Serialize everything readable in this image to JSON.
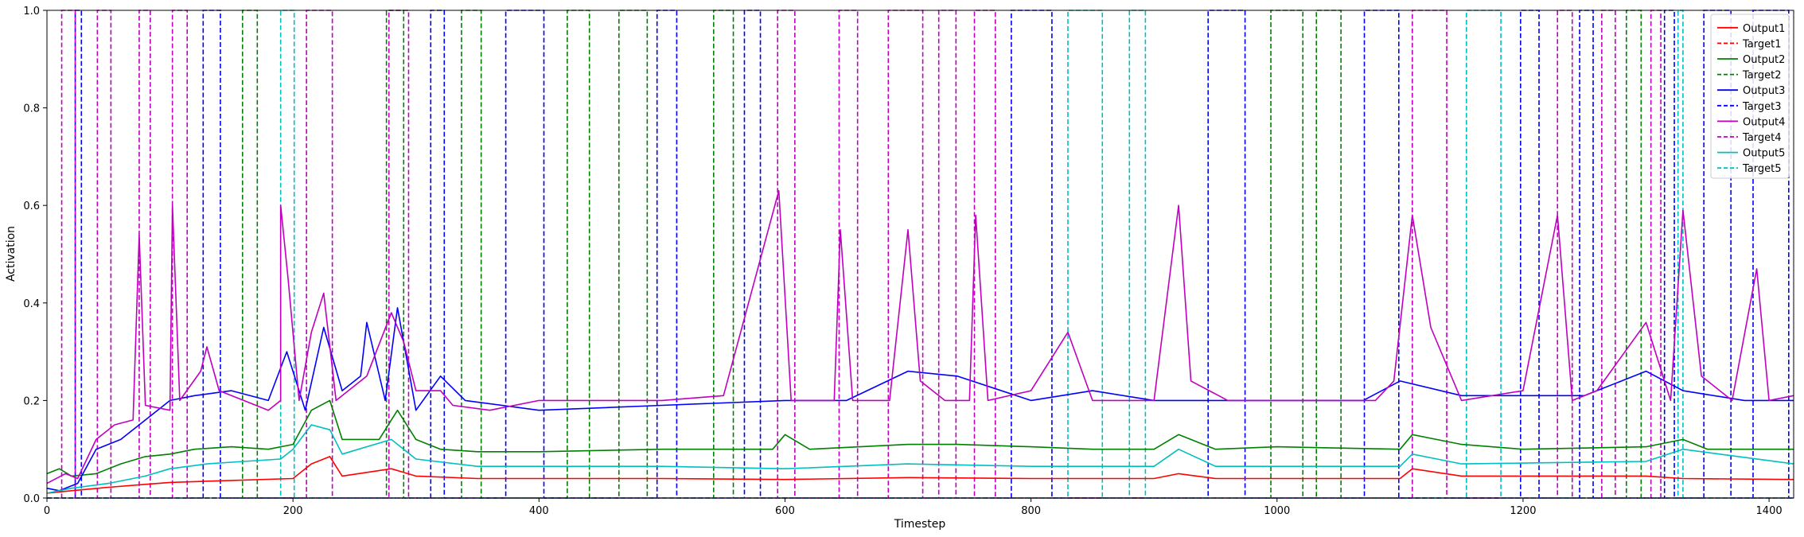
{
  "chart_data": {
    "type": "line",
    "title": "",
    "xlabel": "Timestep",
    "ylabel": "Activation",
    "xlim": [
      0,
      1420
    ],
    "ylim": [
      0,
      1.0
    ],
    "xticks": [
      0,
      200,
      400,
      600,
      800,
      1000,
      1200,
      1400
    ],
    "yticks": [
      0.0,
      0.2,
      0.4,
      0.6,
      0.8,
      1.0
    ],
    "ytick_labels": [
      "0.0",
      "0.2",
      "0.4",
      "0.6",
      "0.8",
      "1.0"
    ],
    "legend_position": "top-right",
    "targets": [
      {
        "name": "Target1",
        "color": "#ff0000",
        "intervals": []
      },
      {
        "name": "Target2",
        "color": "#008000",
        "intervals": [
          [
            159,
            171
          ],
          [
            276,
            290
          ],
          [
            337,
            353
          ],
          [
            423,
            441
          ],
          [
            465,
            488
          ],
          [
            542,
            558
          ],
          [
            995,
            1021
          ],
          [
            1032,
            1052
          ],
          [
            1284,
            1296
          ]
        ]
      },
      {
        "name": "Target3",
        "color": "#0000ff",
        "intervals": [
          [
            23,
            28
          ],
          [
            127,
            141
          ],
          [
            312,
            323
          ],
          [
            373,
            404
          ],
          [
            496,
            512
          ],
          [
            567,
            580
          ],
          [
            784,
            817
          ],
          [
            944,
            974
          ],
          [
            1071,
            1099
          ],
          [
            1198,
            1213
          ],
          [
            1246,
            1257
          ],
          [
            1315,
            1323
          ],
          [
            1347,
            1369
          ],
          [
            1387,
            1416
          ]
        ]
      },
      {
        "name": "Target4",
        "color": "#bf00bf",
        "intervals": [
          [
            12,
            23
          ],
          [
            41,
            52
          ],
          [
            75,
            84
          ],
          [
            102,
            114
          ],
          [
            211,
            232
          ],
          [
            278,
            294
          ],
          [
            594,
            608
          ],
          [
            644,
            659
          ],
          [
            684,
            712
          ],
          [
            725,
            739
          ],
          [
            754,
            771
          ],
          [
            1110,
            1138
          ],
          [
            1228,
            1240
          ],
          [
            1264,
            1275
          ],
          [
            1304,
            1312
          ]
        ]
      },
      {
        "name": "Target5",
        "color": "#00bfbf",
        "intervals": [
          [
            190,
            201
          ],
          [
            830,
            858
          ],
          [
            880,
            893
          ],
          [
            1154,
            1182
          ],
          [
            1326,
            1330
          ]
        ]
      }
    ],
    "outputs": [
      {
        "name": "Output1",
        "color": "#ff0000",
        "points": [
          [
            0,
            0.01
          ],
          [
            20,
            0.015
          ],
          [
            50,
            0.022
          ],
          [
            80,
            0.028
          ],
          [
            100,
            0.032
          ],
          [
            150,
            0.036
          ],
          [
            200,
            0.04
          ],
          [
            215,
            0.07
          ],
          [
            230,
            0.085
          ],
          [
            240,
            0.045
          ],
          [
            280,
            0.06
          ],
          [
            300,
            0.045
          ],
          [
            350,
            0.04
          ],
          [
            500,
            0.04
          ],
          [
            600,
            0.038
          ],
          [
            700,
            0.042
          ],
          [
            800,
            0.04
          ],
          [
            900,
            0.04
          ],
          [
            920,
            0.05
          ],
          [
            950,
            0.04
          ],
          [
            1100,
            0.04
          ],
          [
            1110,
            0.06
          ],
          [
            1150,
            0.045
          ],
          [
            1300,
            0.045
          ],
          [
            1330,
            0.04
          ],
          [
            1420,
            0.038
          ]
        ]
      },
      {
        "name": "Output2",
        "color": "#008000",
        "points": [
          [
            0,
            0.05
          ],
          [
            10,
            0.06
          ],
          [
            20,
            0.045
          ],
          [
            40,
            0.05
          ],
          [
            60,
            0.07
          ],
          [
            80,
            0.085
          ],
          [
            100,
            0.09
          ],
          [
            120,
            0.1
          ],
          [
            150,
            0.105
          ],
          [
            180,
            0.1
          ],
          [
            200,
            0.11
          ],
          [
            215,
            0.18
          ],
          [
            230,
            0.2
          ],
          [
            240,
            0.12
          ],
          [
            270,
            0.12
          ],
          [
            285,
            0.18
          ],
          [
            300,
            0.12
          ],
          [
            320,
            0.1
          ],
          [
            350,
            0.095
          ],
          [
            400,
            0.095
          ],
          [
            500,
            0.1
          ],
          [
            590,
            0.1
          ],
          [
            600,
            0.13
          ],
          [
            620,
            0.1
          ],
          [
            700,
            0.11
          ],
          [
            740,
            0.11
          ],
          [
            800,
            0.105
          ],
          [
            850,
            0.1
          ],
          [
            900,
            0.1
          ],
          [
            920,
            0.13
          ],
          [
            950,
            0.1
          ],
          [
            1000,
            0.105
          ],
          [
            1100,
            0.1
          ],
          [
            1110,
            0.13
          ],
          [
            1150,
            0.11
          ],
          [
            1200,
            0.1
          ],
          [
            1300,
            0.105
          ],
          [
            1330,
            0.12
          ],
          [
            1350,
            0.1
          ],
          [
            1420,
            0.1
          ]
        ]
      },
      {
        "name": "Output3",
        "color": "#0000ff",
        "points": [
          [
            0,
            0.02
          ],
          [
            10,
            0.015
          ],
          [
            25,
            0.03
          ],
          [
            40,
            0.1
          ],
          [
            60,
            0.12
          ],
          [
            80,
            0.16
          ],
          [
            100,
            0.2
          ],
          [
            120,
            0.21
          ],
          [
            150,
            0.22
          ],
          [
            180,
            0.2
          ],
          [
            195,
            0.3
          ],
          [
            210,
            0.18
          ],
          [
            225,
            0.35
          ],
          [
            240,
            0.22
          ],
          [
            255,
            0.25
          ],
          [
            260,
            0.36
          ],
          [
            275,
            0.2
          ],
          [
            285,
            0.39
          ],
          [
            300,
            0.18
          ],
          [
            320,
            0.25
          ],
          [
            340,
            0.2
          ],
          [
            400,
            0.18
          ],
          [
            500,
            0.19
          ],
          [
            600,
            0.2
          ],
          [
            650,
            0.2
          ],
          [
            700,
            0.26
          ],
          [
            740,
            0.25
          ],
          [
            800,
            0.2
          ],
          [
            850,
            0.22
          ],
          [
            900,
            0.2
          ],
          [
            1000,
            0.2
          ],
          [
            1070,
            0.2
          ],
          [
            1100,
            0.24
          ],
          [
            1150,
            0.21
          ],
          [
            1200,
            0.21
          ],
          [
            1250,
            0.21
          ],
          [
            1300,
            0.26
          ],
          [
            1330,
            0.22
          ],
          [
            1380,
            0.2
          ],
          [
            1420,
            0.2
          ]
        ]
      },
      {
        "name": "Output4",
        "color": "#bf00bf",
        "points": [
          [
            0,
            0.03
          ],
          [
            15,
            0.05
          ],
          [
            25,
            0.04
          ],
          [
            40,
            0.12
          ],
          [
            55,
            0.15
          ],
          [
            70,
            0.16
          ],
          [
            75,
            0.54
          ],
          [
            80,
            0.19
          ],
          [
            100,
            0.18
          ],
          [
            102,
            0.6
          ],
          [
            108,
            0.2
          ],
          [
            125,
            0.26
          ],
          [
            130,
            0.31
          ],
          [
            140,
            0.22
          ],
          [
            160,
            0.2
          ],
          [
            180,
            0.18
          ],
          [
            190,
            0.2
          ],
          [
            190,
            0.6
          ],
          [
            196,
            0.45
          ],
          [
            205,
            0.2
          ],
          [
            215,
            0.34
          ],
          [
            225,
            0.42
          ],
          [
            235,
            0.2
          ],
          [
            260,
            0.25
          ],
          [
            280,
            0.38
          ],
          [
            290,
            0.32
          ],
          [
            300,
            0.22
          ],
          [
            320,
            0.22
          ],
          [
            330,
            0.19
          ],
          [
            360,
            0.18
          ],
          [
            400,
            0.2
          ],
          [
            450,
            0.2
          ],
          [
            500,
            0.2
          ],
          [
            550,
            0.21
          ],
          [
            595,
            0.63
          ],
          [
            605,
            0.2
          ],
          [
            640,
            0.2
          ],
          [
            645,
            0.55
          ],
          [
            655,
            0.2
          ],
          [
            685,
            0.2
          ],
          [
            700,
            0.55
          ],
          [
            710,
            0.24
          ],
          [
            730,
            0.2
          ],
          [
            750,
            0.2
          ],
          [
            755,
            0.58
          ],
          [
            765,
            0.2
          ],
          [
            800,
            0.22
          ],
          [
            830,
            0.34
          ],
          [
            850,
            0.2
          ],
          [
            900,
            0.2
          ],
          [
            920,
            0.6
          ],
          [
            930,
            0.24
          ],
          [
            960,
            0.2
          ],
          [
            1000,
            0.2
          ],
          [
            1050,
            0.2
          ],
          [
            1080,
            0.2
          ],
          [
            1095,
            0.24
          ],
          [
            1110,
            0.58
          ],
          [
            1125,
            0.35
          ],
          [
            1150,
            0.2
          ],
          [
            1200,
            0.22
          ],
          [
            1228,
            0.58
          ],
          [
            1240,
            0.2
          ],
          [
            1260,
            0.22
          ],
          [
            1300,
            0.36
          ],
          [
            1320,
            0.2
          ],
          [
            1330,
            0.59
          ],
          [
            1345,
            0.25
          ],
          [
            1370,
            0.2
          ],
          [
            1390,
            0.47
          ],
          [
            1400,
            0.2
          ],
          [
            1420,
            0.21
          ]
        ]
      },
      {
        "name": "Output5",
        "color": "#00bfbf",
        "points": [
          [
            0,
            0.01
          ],
          [
            20,
            0.02
          ],
          [
            50,
            0.03
          ],
          [
            80,
            0.045
          ],
          [
            100,
            0.06
          ],
          [
            130,
            0.07
          ],
          [
            160,
            0.075
          ],
          [
            190,
            0.08
          ],
          [
            200,
            0.1
          ],
          [
            215,
            0.15
          ],
          [
            230,
            0.14
          ],
          [
            240,
            0.09
          ],
          [
            280,
            0.12
          ],
          [
            300,
            0.08
          ],
          [
            350,
            0.065
          ],
          [
            500,
            0.065
          ],
          [
            600,
            0.06
          ],
          [
            700,
            0.07
          ],
          [
            800,
            0.065
          ],
          [
            900,
            0.065
          ],
          [
            920,
            0.1
          ],
          [
            950,
            0.065
          ],
          [
            1100,
            0.065
          ],
          [
            1110,
            0.09
          ],
          [
            1150,
            0.07
          ],
          [
            1300,
            0.075
          ],
          [
            1330,
            0.1
          ],
          [
            1420,
            0.07
          ]
        ]
      }
    ],
    "legend": [
      "Output1",
      "Target1",
      "Output2",
      "Target2",
      "Output3",
      "Target3",
      "Output4",
      "Target4",
      "Output5",
      "Target5"
    ]
  }
}
